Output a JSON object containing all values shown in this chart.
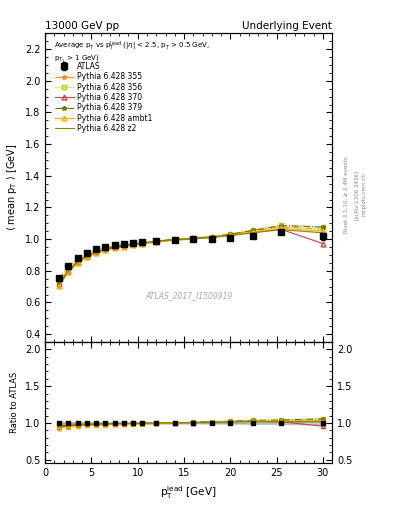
{
  "title_left": "13000 GeV pp",
  "title_right": "Underlying Event",
  "ylabel_main": "⟨ mean p_{T} ⟩ [GeV]",
  "ylabel_ratio": "Ratio to ATLAS",
  "xlabel": "p_{T}^{lead} [GeV]",
  "watermark": "ATLAS_2017_I1509919",
  "ylim_main": [
    0.35,
    2.3
  ],
  "ylim_ratio": [
    0.45,
    2.1
  ],
  "xlim": [
    0,
    31
  ],
  "yticks_main": [
    0.4,
    0.6,
    0.8,
    1.0,
    1.2,
    1.4,
    1.6,
    1.8,
    2.0,
    2.2
  ],
  "yticks_ratio": [
    0.5,
    1.0,
    1.5,
    2.0
  ],
  "xticks": [
    0,
    5,
    10,
    15,
    20,
    25,
    30
  ],
  "atlas_x": [
    1.5,
    2.5,
    3.5,
    4.5,
    5.5,
    6.5,
    7.5,
    8.5,
    9.5,
    10.5,
    12.0,
    14.0,
    16.0,
    18.0,
    20.0,
    22.5,
    25.5,
    30.0
  ],
  "atlas_y": [
    0.755,
    0.832,
    0.882,
    0.913,
    0.935,
    0.95,
    0.96,
    0.968,
    0.974,
    0.98,
    0.988,
    0.994,
    0.998,
    1.001,
    1.008,
    1.02,
    1.045,
    1.018
  ],
  "atlas_yerr": [
    0.014,
    0.011,
    0.009,
    0.008,
    0.007,
    0.007,
    0.006,
    0.006,
    0.006,
    0.006,
    0.006,
    0.006,
    0.007,
    0.008,
    0.009,
    0.012,
    0.014,
    0.022
  ],
  "mc355_x": [
    1.5,
    2.5,
    3.5,
    4.5,
    5.5,
    6.5,
    7.5,
    8.5,
    9.5,
    10.5,
    12.0,
    14.0,
    16.0,
    18.0,
    20.0,
    22.5,
    25.5,
    30.0
  ],
  "mc355_y": [
    0.745,
    0.823,
    0.876,
    0.909,
    0.93,
    0.946,
    0.957,
    0.966,
    0.973,
    0.979,
    0.989,
    0.998,
    1.006,
    1.016,
    1.03,
    1.052,
    1.078,
    1.062
  ],
  "mc355_color": "#ff8c00",
  "mc355_lstyle": "-.",
  "mc355_marker": "*",
  "mc355_label": "Pythia 6.428 355",
  "mc356_x": [
    1.5,
    2.5,
    3.5,
    4.5,
    5.5,
    6.5,
    7.5,
    8.5,
    9.5,
    10.5,
    12.0,
    14.0,
    16.0,
    18.0,
    20.0,
    22.5,
    25.5,
    30.0
  ],
  "mc356_y": [
    0.725,
    0.807,
    0.86,
    0.897,
    0.92,
    0.938,
    0.95,
    0.961,
    0.969,
    0.976,
    0.987,
    0.997,
    1.006,
    1.016,
    1.032,
    1.058,
    1.088,
    1.078
  ],
  "mc356_color": "#aacc00",
  "mc356_lstyle": ":",
  "mc356_marker": "s",
  "mc356_label": "Pythia 6.428 356",
  "mc370_x": [
    1.5,
    2.5,
    3.5,
    4.5,
    5.5,
    6.5,
    7.5,
    8.5,
    9.5,
    10.5,
    12.0,
    14.0,
    16.0,
    18.0,
    20.0,
    22.5,
    25.5,
    30.0
  ],
  "mc370_y": [
    0.718,
    0.801,
    0.856,
    0.894,
    0.918,
    0.936,
    0.949,
    0.96,
    0.968,
    0.974,
    0.986,
    0.996,
    1.003,
    1.012,
    1.024,
    1.044,
    1.062,
    0.972
  ],
  "mc370_color": "#cc4444",
  "mc370_lstyle": "-",
  "mc370_marker": "^",
  "mc370_label": "Pythia 6.428 370",
  "mc379_x": [
    1.5,
    2.5,
    3.5,
    4.5,
    5.5,
    6.5,
    7.5,
    8.5,
    9.5,
    10.5,
    12.0,
    14.0,
    16.0,
    18.0,
    20.0,
    22.5,
    25.5,
    30.0
  ],
  "mc379_y": [
    0.722,
    0.806,
    0.86,
    0.897,
    0.92,
    0.938,
    0.951,
    0.962,
    0.97,
    0.977,
    0.988,
    0.998,
    1.006,
    1.016,
    1.031,
    1.056,
    1.086,
    1.076
  ],
  "mc379_color": "#667700",
  "mc379_lstyle": "-.",
  "mc379_marker": "*",
  "mc379_label": "Pythia 6.428 379",
  "mcambt1_x": [
    1.5,
    2.5,
    3.5,
    4.5,
    5.5,
    6.5,
    7.5,
    8.5,
    9.5,
    10.5,
    12.0,
    14.0,
    16.0,
    18.0,
    20.0,
    22.5,
    25.5,
    30.0
  ],
  "mcambt1_y": [
    0.703,
    0.79,
    0.847,
    0.886,
    0.91,
    0.929,
    0.942,
    0.953,
    0.962,
    0.969,
    0.981,
    0.992,
    1.0,
    1.01,
    1.024,
    1.045,
    1.068,
    1.05
  ],
  "mcambt1_color": "#ffaa00",
  "mcambt1_lstyle": "-",
  "mcambt1_marker": "^",
  "mcambt1_label": "Pythia 6.428 ambt1",
  "mcz2_x": [
    1.5,
    2.5,
    3.5,
    4.5,
    5.5,
    6.5,
    7.5,
    8.5,
    9.5,
    10.5,
    12.0,
    14.0,
    16.0,
    18.0,
    20.0,
    22.5,
    25.5,
    30.0
  ],
  "mcz2_y": [
    0.713,
    0.799,
    0.854,
    0.893,
    0.916,
    0.935,
    0.948,
    0.959,
    0.967,
    0.974,
    0.985,
    0.995,
    1.002,
    1.01,
    1.022,
    1.04,
    1.06,
    1.04
  ],
  "mcz2_color": "#888800",
  "mcz2_lstyle": "-",
  "mcz2_marker": null,
  "mcz2_label": "Pythia 6.428 z2"
}
